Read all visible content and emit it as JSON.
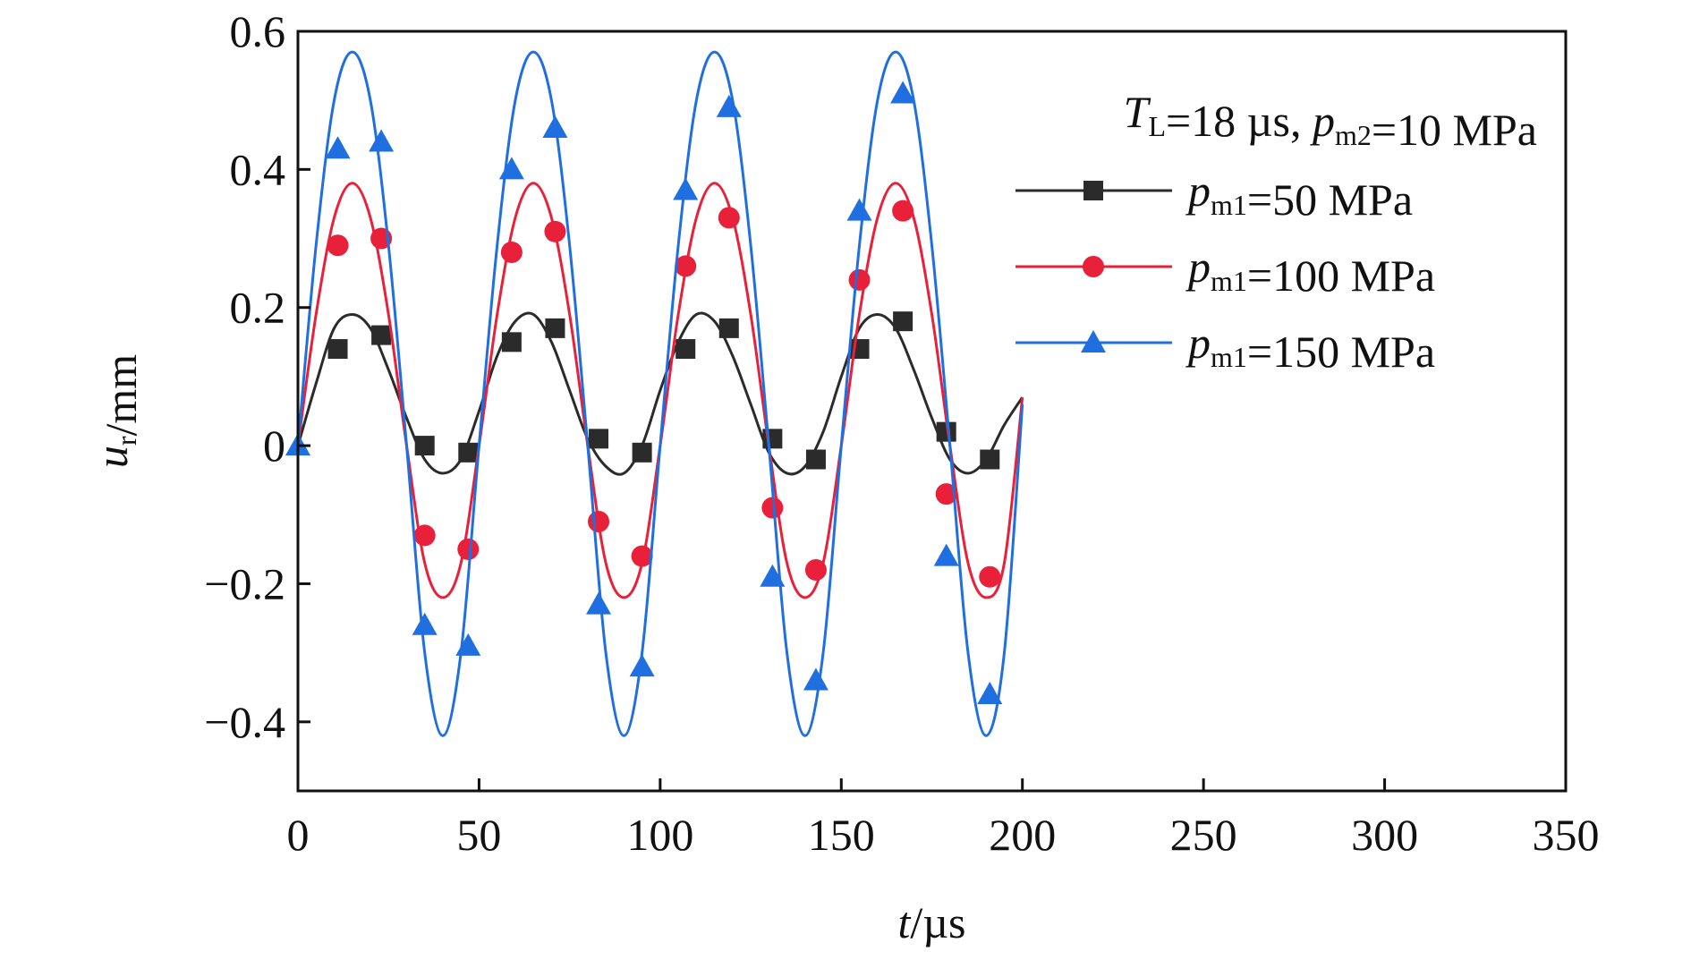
{
  "chart_data": {
    "type": "line",
    "xlabel": "t/µs",
    "ylabel": "u_r/mm",
    "xlim": [
      0,
      350
    ],
    "ylim": [
      -0.5,
      0.6
    ],
    "xticks": [
      "0",
      "50",
      "100",
      "150",
      "200",
      "250",
      "300",
      "350"
    ],
    "yticks": [
      "0.6",
      "0.4",
      "0.2",
      "0",
      "−0.2",
      "−0.4"
    ],
    "legend_title": "T_L=18 µs, p_m2=10 MPa",
    "legend_position": "top-right",
    "grid": false,
    "x": [
      0,
      5,
      10,
      15,
      20,
      25,
      30,
      35,
      40,
      45,
      50,
      55,
      60,
      65,
      70,
      75,
      80,
      85,
      90,
      95,
      100,
      105,
      110,
      115,
      120,
      125,
      130,
      135,
      140,
      145,
      150,
      155,
      160,
      165,
      170,
      175,
      180,
      185,
      190,
      195,
      200
    ],
    "series": [
      {
        "name": "p_m1=50 MPa",
        "color": "#2b2b2b",
        "marker": "square",
        "values": [
          0.0,
          0.09,
          0.17,
          0.19,
          0.17,
          0.11,
          0.04,
          -0.02,
          -0.04,
          -0.02,
          0.05,
          0.13,
          0.18,
          0.19,
          0.15,
          0.08,
          0.01,
          -0.03,
          -0.04,
          0.0,
          0.08,
          0.15,
          0.19,
          0.18,
          0.13,
          0.06,
          -0.01,
          -0.04,
          -0.03,
          0.02,
          0.1,
          0.17,
          0.19,
          0.17,
          0.11,
          0.04,
          -0.02,
          -0.04,
          -0.02,
          0.03,
          0.07
        ],
        "markers": [
          [
            11,
            0.14
          ],
          [
            23,
            0.16
          ],
          [
            35,
            0.0
          ],
          [
            47,
            -0.01
          ],
          [
            59,
            0.15
          ],
          [
            71,
            0.17
          ],
          [
            83,
            0.01
          ],
          [
            95,
            -0.01
          ],
          [
            107,
            0.14
          ],
          [
            119,
            0.17
          ],
          [
            131,
            0.01
          ],
          [
            143,
            -0.02
          ],
          [
            155,
            0.14
          ],
          [
            167,
            0.18
          ],
          [
            179,
            0.02
          ],
          [
            191,
            -0.02
          ]
        ]
      },
      {
        "name": "p_m1=100 MPa",
        "color": "#e8203a",
        "marker": "circle",
        "values": [
          0.0,
          0.19,
          0.33,
          0.38,
          0.33,
          0.19,
          0.0,
          -0.17,
          -0.22,
          -0.17,
          0.0,
          0.19,
          0.33,
          0.38,
          0.33,
          0.19,
          0.0,
          -0.17,
          -0.22,
          -0.17,
          0.0,
          0.19,
          0.33,
          0.38,
          0.33,
          0.19,
          0.0,
          -0.17,
          -0.22,
          -0.17,
          0.0,
          0.19,
          0.33,
          0.38,
          0.33,
          0.19,
          0.0,
          -0.17,
          -0.22,
          -0.17,
          0.07
        ],
        "markers": [
          [
            11,
            0.29
          ],
          [
            23,
            0.3
          ],
          [
            35,
            -0.13
          ],
          [
            47,
            -0.15
          ],
          [
            59,
            0.28
          ],
          [
            71,
            0.31
          ],
          [
            83,
            -0.11
          ],
          [
            95,
            -0.16
          ],
          [
            107,
            0.26
          ],
          [
            119,
            0.33
          ],
          [
            131,
            -0.09
          ],
          [
            143,
            -0.18
          ],
          [
            155,
            0.24
          ],
          [
            167,
            0.34
          ],
          [
            179,
            -0.07
          ],
          [
            191,
            -0.19
          ]
        ]
      },
      {
        "name": "p_m1=150 MPa",
        "color": "#1f6fe0",
        "marker": "triangle",
        "values": [
          0.0,
          0.29,
          0.5,
          0.57,
          0.5,
          0.29,
          0.0,
          -0.3,
          -0.42,
          -0.3,
          0.0,
          0.29,
          0.5,
          0.57,
          0.5,
          0.29,
          0.0,
          -0.3,
          -0.42,
          -0.3,
          0.0,
          0.29,
          0.5,
          0.57,
          0.5,
          0.29,
          0.0,
          -0.3,
          -0.42,
          -0.3,
          0.0,
          0.29,
          0.5,
          0.57,
          0.5,
          0.29,
          0.0,
          -0.3,
          -0.42,
          -0.3,
          0.06
        ],
        "markers": [
          [
            0,
            0.0
          ],
          [
            11,
            0.43
          ],
          [
            23,
            0.44
          ],
          [
            35,
            -0.26
          ],
          [
            47,
            -0.29
          ],
          [
            59,
            0.4
          ],
          [
            71,
            0.46
          ],
          [
            83,
            -0.23
          ],
          [
            95,
            -0.32
          ],
          [
            107,
            0.37
          ],
          [
            119,
            0.49
          ],
          [
            131,
            -0.19
          ],
          [
            143,
            -0.34
          ],
          [
            155,
            0.34
          ],
          [
            167,
            0.51
          ],
          [
            179,
            -0.16
          ],
          [
            191,
            -0.36
          ]
        ]
      }
    ]
  }
}
